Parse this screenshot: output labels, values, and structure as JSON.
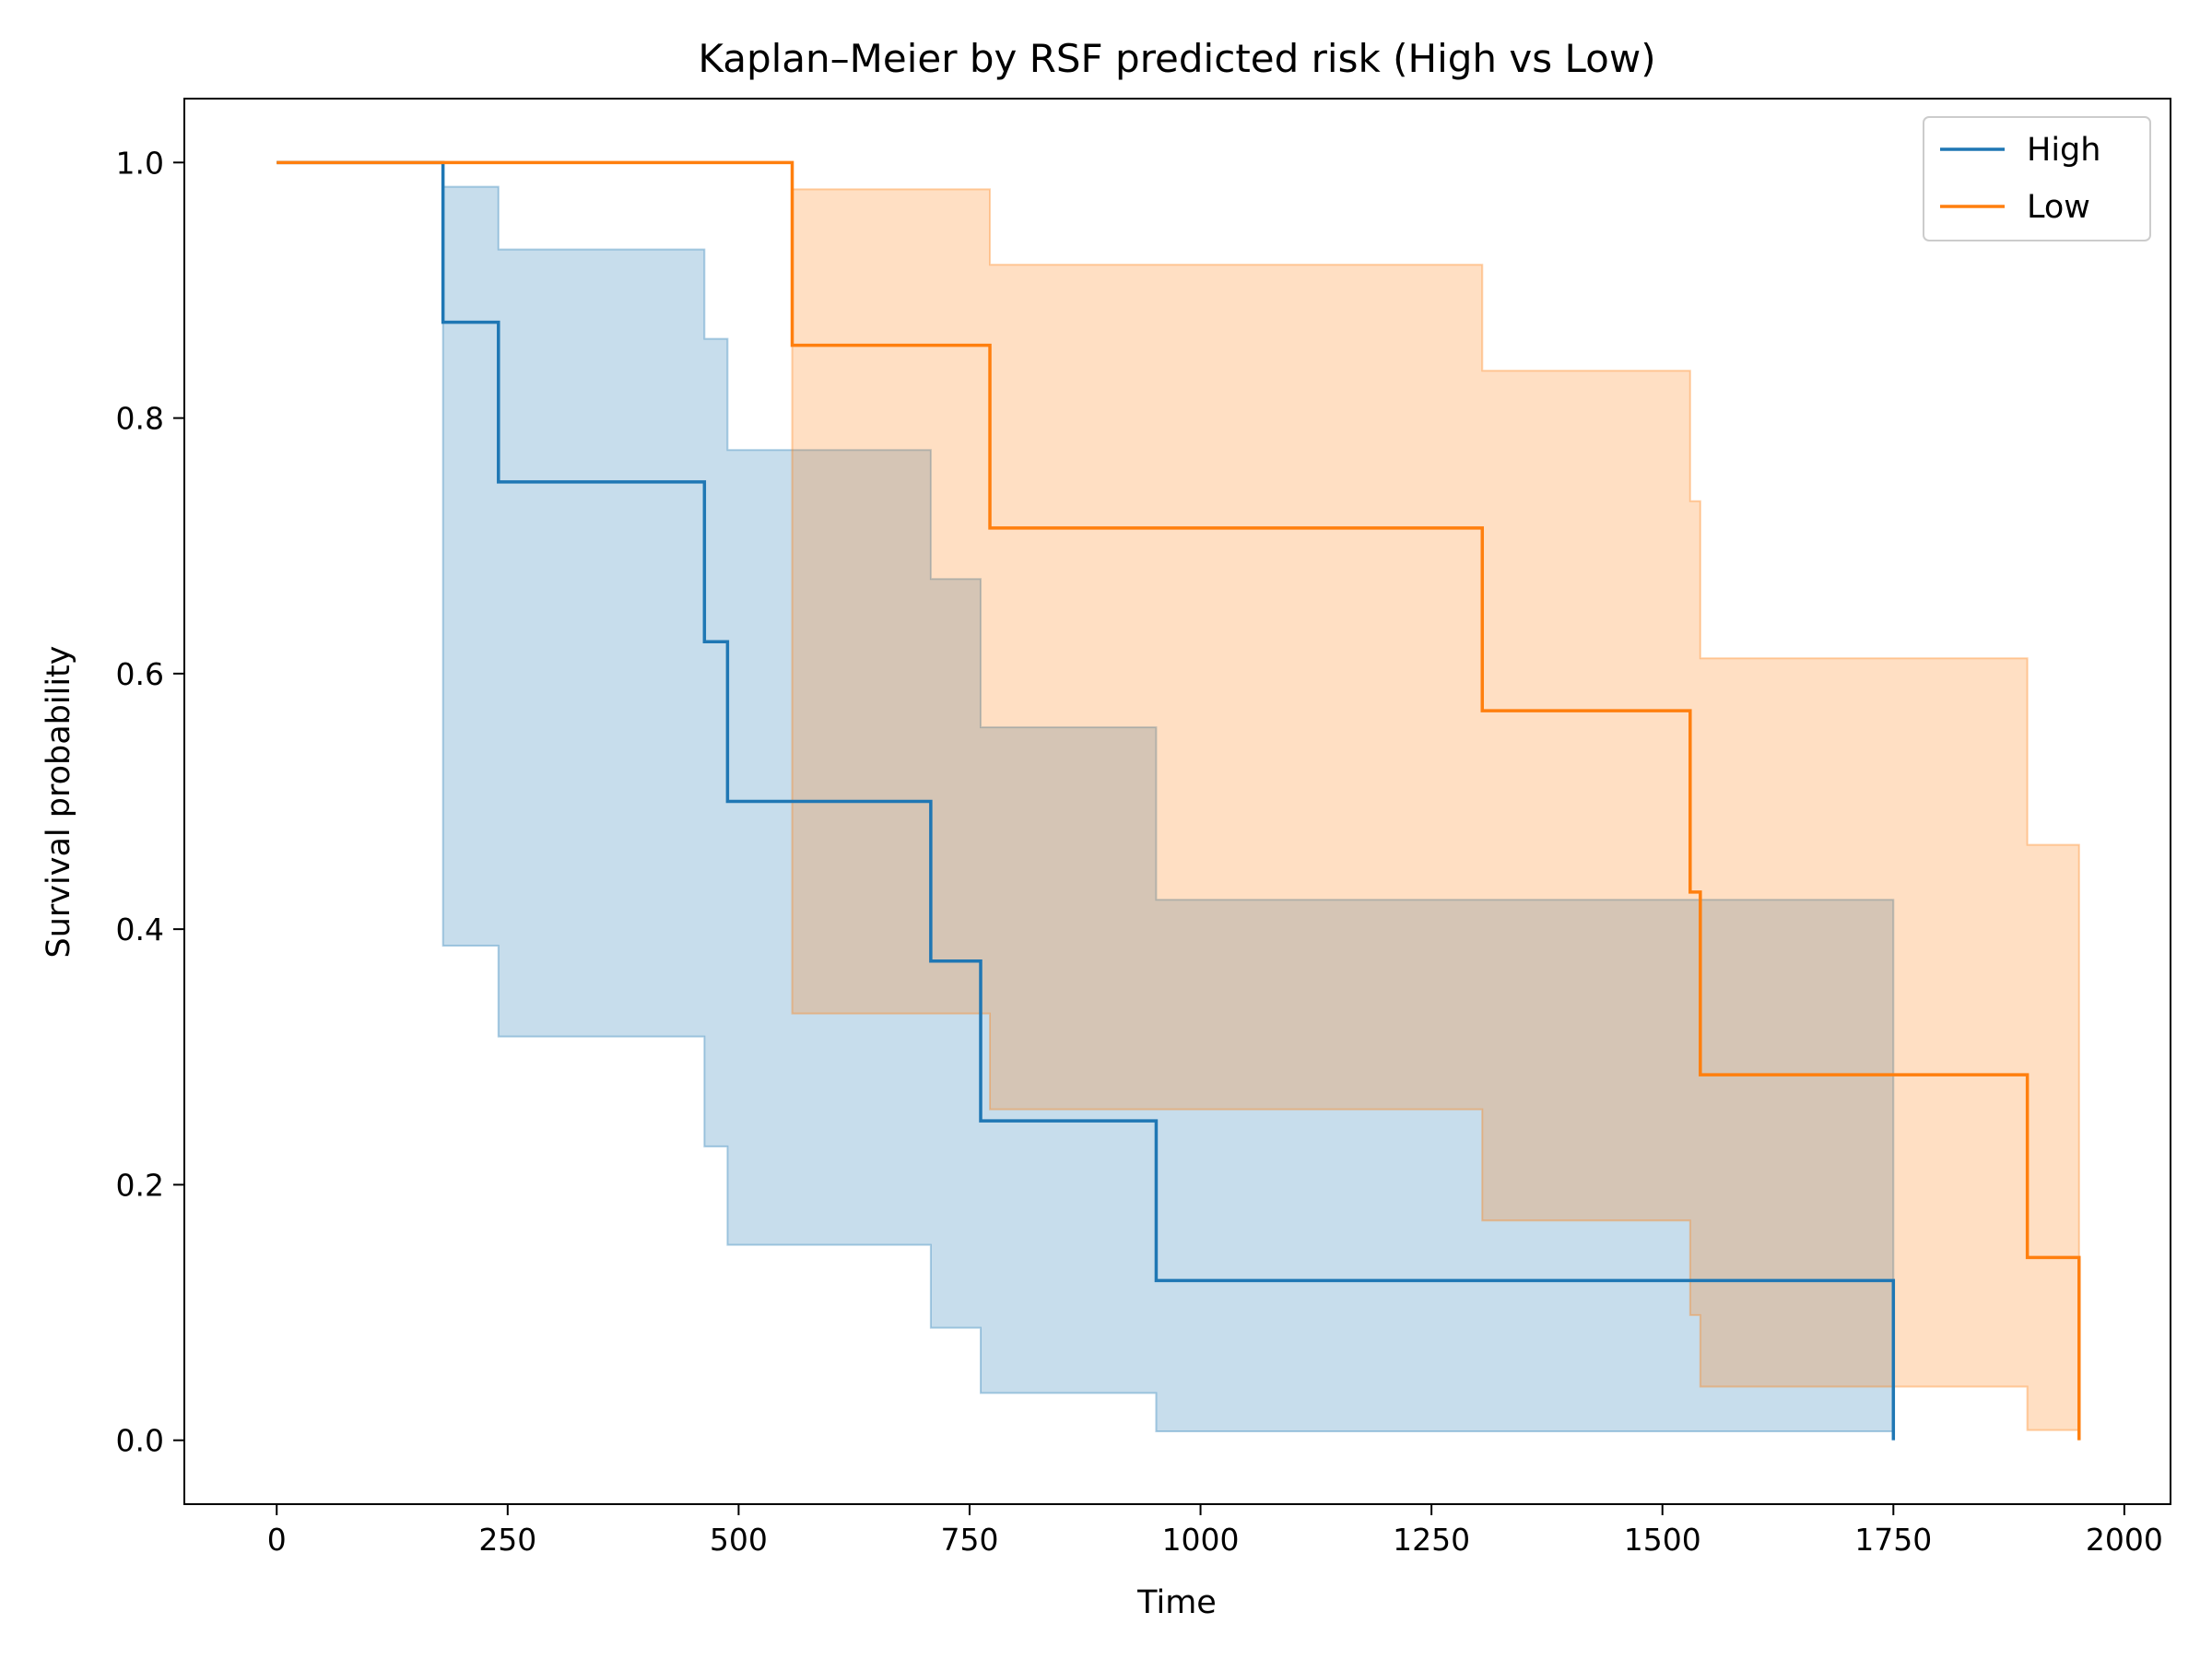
{
  "chart_data": {
    "type": "line",
    "title": "Kaplan–Meier by RSF predicted risk (High vs Low)",
    "xlabel": "Time",
    "ylabel": "Survival probability",
    "xlim": [
      -100,
      2050
    ],
    "ylim": [
      -0.05,
      1.05
    ],
    "xticks": [
      0,
      250,
      500,
      750,
      1000,
      1250,
      1500,
      1750,
      2000
    ],
    "yticks": [
      0.0,
      0.2,
      0.4,
      0.6,
      0.8,
      1.0
    ],
    "xtick_labels": [
      "0",
      "250",
      "500",
      "750",
      "1000",
      "1250",
      "1500",
      "1750",
      "2000"
    ],
    "ytick_labels": [
      "0.0",
      "0.2",
      "0.4",
      "0.6",
      "0.8",
      "1.0"
    ],
    "grid": false,
    "legend_position": "top-right",
    "series": [
      {
        "name": "High",
        "color": "#1f77b4",
        "times": [
          0,
          180,
          240,
          463,
          488,
          708,
          762,
          952,
          1750
        ],
        "survival": [
          1.0,
          0.875,
          0.75,
          0.625,
          0.5,
          0.375,
          0.25,
          0.125,
          0.0
        ],
        "ci_lower": [
          1.0,
          0.387,
          0.316,
          0.23,
          0.153,
          0.088,
          0.037,
          0.007,
          0.007
        ],
        "ci_upper": [
          1.0,
          0.981,
          0.932,
          0.862,
          0.775,
          0.674,
          0.558,
          0.423,
          0.423
        ]
      },
      {
        "name": "Low",
        "color": "#ff7f0e",
        "times": [
          0,
          558,
          772,
          1305,
          1530,
          1541,
          1895,
          1951
        ],
        "survival": [
          1.0,
          0.857,
          0.714,
          0.571,
          0.429,
          0.286,
          0.143,
          0.0
        ],
        "ci_lower": [
          1.0,
          0.334,
          0.259,
          0.172,
          0.098,
          0.042,
          0.008,
          0.008
        ],
        "ci_upper": [
          1.0,
          0.979,
          0.92,
          0.837,
          0.735,
          0.612,
          0.466,
          0.466
        ]
      }
    ]
  }
}
